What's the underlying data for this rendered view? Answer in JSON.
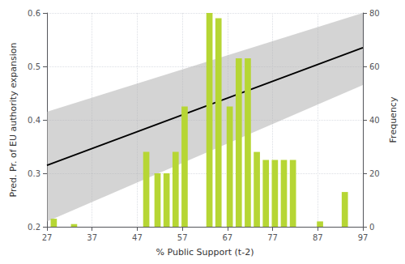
{
  "chart_data": {
    "type": "combo",
    "xlabel": "% Public Support (t-2)",
    "ylabel": "Pred. Pr. of EU authority expansion",
    "y2label": "Frequency",
    "xlim": [
      27,
      97
    ],
    "xticks": [
      27,
      37,
      47,
      57,
      67,
      77,
      87,
      97
    ],
    "ylim": [
      0.2,
      0.6
    ],
    "yticks": [
      0.2,
      0.3,
      0.4,
      0.5,
      0.6
    ],
    "y2lim": [
      0,
      80
    ],
    "y2ticks": [
      0,
      20,
      40,
      60,
      80
    ],
    "grid": true,
    "series": [
      {
        "type": "band",
        "x": [
          27,
          97
        ],
        "lower": [
          0.21,
          0.465
        ],
        "upper": [
          0.415,
          0.6
        ],
        "color": "#b0b0b0"
      },
      {
        "type": "line",
        "x": [
          27,
          97
        ],
        "values": [
          0.315,
          0.535
        ],
        "color": "black"
      },
      {
        "type": "bar",
        "axis": "y2",
        "x": [
          28.5,
          33.0,
          49.0,
          51.5,
          53.5,
          55.5,
          57.5,
          63.0,
          65.0,
          67.5,
          69.5,
          71.5,
          73.5,
          75.5,
          77.5,
          79.5,
          81.5,
          87.5,
          93.0
        ],
        "values": [
          3,
          1,
          28,
          20,
          20,
          28,
          45,
          80,
          78,
          45,
          63,
          63,
          28,
          25,
          25,
          25,
          25,
          2,
          13
        ]
      }
    ]
  }
}
